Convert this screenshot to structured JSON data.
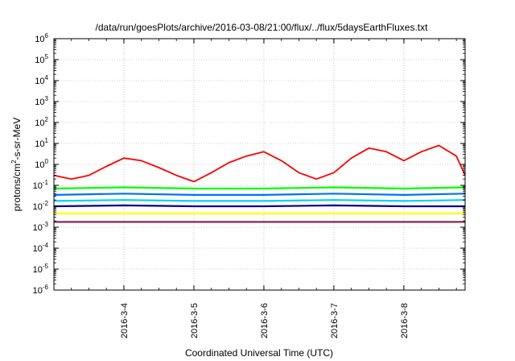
{
  "chart_data": {
    "type": "line",
    "title": "/data/run/goesPlots/archive/2016-03-08/21:00/flux/../flux/5daysEarthFluxes.txt",
    "xlabel": "Coordinated Universal Time (UTC)",
    "ylabel_parts": [
      "protons/cm",
      "2",
      "-s-sr-MeV"
    ],
    "y_scale": "log",
    "ylim": [
      1e-06,
      1000000.0
    ],
    "y_ticks": [
      {
        "base": "10",
        "exp": "6",
        "value": 1000000.0
      },
      {
        "base": "10",
        "exp": "5",
        "value": 100000.0
      },
      {
        "base": "10",
        "exp": "4",
        "value": 10000.0
      },
      {
        "base": "10",
        "exp": "3",
        "value": 1000.0
      },
      {
        "base": "10",
        "exp": "2",
        "value": 100.0
      },
      {
        "base": "10",
        "exp": "1",
        "value": 10.0
      },
      {
        "base": "10",
        "exp": "0",
        "value": 1.0
      },
      {
        "base": "10",
        "exp": "-1",
        "value": 0.1
      },
      {
        "base": "10",
        "exp": "-2",
        "value": 0.01
      },
      {
        "base": "10",
        "exp": "-3",
        "value": 0.001
      },
      {
        "base": "10",
        "exp": "-4",
        "value": 0.0001
      },
      {
        "base": "10",
        "exp": "-5",
        "value": 1e-05
      },
      {
        "base": "10",
        "exp": "-6",
        "value": 1e-06
      }
    ],
    "xlim": [
      "2016-03-03T00:00",
      "2016-03-08T21:00"
    ],
    "x_ticks": [
      "2016-3-4",
      "2016-3-5",
      "2016-3-6",
      "2016-3-7",
      "2016-3-8"
    ],
    "x_tick_values": [
      "2016-03-04T00:00",
      "2016-03-05T00:00",
      "2016-03-06T00:00",
      "2016-03-07T00:00",
      "2016-03-08T00:00"
    ],
    "grid": true,
    "series": [
      {
        "color": "#ff0000",
        "x": [
          "2016-03-03T00:00",
          "2016-03-03T06:00",
          "2016-03-03T12:00",
          "2016-03-03T18:00",
          "2016-03-04T00:00",
          "2016-03-04T06:00",
          "2016-03-04T12:00",
          "2016-03-04T18:00",
          "2016-03-05T00:00",
          "2016-03-05T06:00",
          "2016-03-05T12:00",
          "2016-03-05T18:00",
          "2016-03-06T00:00",
          "2016-03-06T06:00",
          "2016-03-06T12:00",
          "2016-03-06T18:00",
          "2016-03-07T00:00",
          "2016-03-07T06:00",
          "2016-03-07T12:00",
          "2016-03-07T18:00",
          "2016-03-08T00:00",
          "2016-03-08T06:00",
          "2016-03-08T12:00",
          "2016-03-08T18:00",
          "2016-03-08T21:00"
        ],
        "values": [
          0.3,
          0.2,
          0.3,
          0.8,
          2,
          1.5,
          0.7,
          0.3,
          0.15,
          0.4,
          1.2,
          2.5,
          4,
          1.5,
          0.4,
          0.2,
          0.4,
          2,
          6,
          4,
          1.5,
          4,
          8,
          2.5,
          0.3
        ]
      },
      {
        "color": "#00ff00",
        "x": [
          "2016-03-03T00:00",
          "2016-03-04T00:00",
          "2016-03-05T00:00",
          "2016-03-06T00:00",
          "2016-03-07T00:00",
          "2016-03-08T00:00",
          "2016-03-08T21:00"
        ],
        "values": [
          0.07,
          0.08,
          0.07,
          0.07,
          0.08,
          0.07,
          0.08
        ]
      },
      {
        "color": "#0070ff",
        "x": [
          "2016-03-03T00:00",
          "2016-03-04T00:00",
          "2016-03-05T00:00",
          "2016-03-06T00:00",
          "2016-03-07T00:00",
          "2016-03-08T00:00",
          "2016-03-08T21:00"
        ],
        "values": [
          0.035,
          0.04,
          0.035,
          0.035,
          0.04,
          0.035,
          0.04
        ]
      },
      {
        "color": "#00d0ff",
        "x": [
          "2016-03-03T00:00",
          "2016-03-04T00:00",
          "2016-03-05T00:00",
          "2016-03-06T00:00",
          "2016-03-07T00:00",
          "2016-03-08T00:00",
          "2016-03-08T21:00"
        ],
        "values": [
          0.018,
          0.02,
          0.018,
          0.018,
          0.02,
          0.018,
          0.02
        ]
      },
      {
        "color": "#00008b",
        "x": [
          "2016-03-03T00:00",
          "2016-03-04T00:00",
          "2016-03-05T00:00",
          "2016-03-06T00:00",
          "2016-03-07T00:00",
          "2016-03-08T00:00",
          "2016-03-08T21:00"
        ],
        "values": [
          0.01,
          0.011,
          0.01,
          0.01,
          0.011,
          0.01,
          0.01
        ]
      },
      {
        "color": "#ffff00",
        "x": [
          "2016-03-03T00:00",
          "2016-03-04T00:00",
          "2016-03-05T00:00",
          "2016-03-06T00:00",
          "2016-03-07T00:00",
          "2016-03-08T00:00",
          "2016-03-08T21:00"
        ],
        "values": [
          0.0045,
          0.0045,
          0.0045,
          0.0045,
          0.0045,
          0.0045,
          0.0045
        ]
      },
      {
        "color": "#8b2252",
        "x": [
          "2016-03-03T00:00",
          "2016-03-04T00:00",
          "2016-03-05T00:00",
          "2016-03-06T00:00",
          "2016-03-07T00:00",
          "2016-03-08T00:00",
          "2016-03-08T21:00"
        ],
        "values": [
          0.0018,
          0.0018,
          0.0018,
          0.0018,
          0.0018,
          0.0018,
          0.0018
        ]
      }
    ]
  }
}
